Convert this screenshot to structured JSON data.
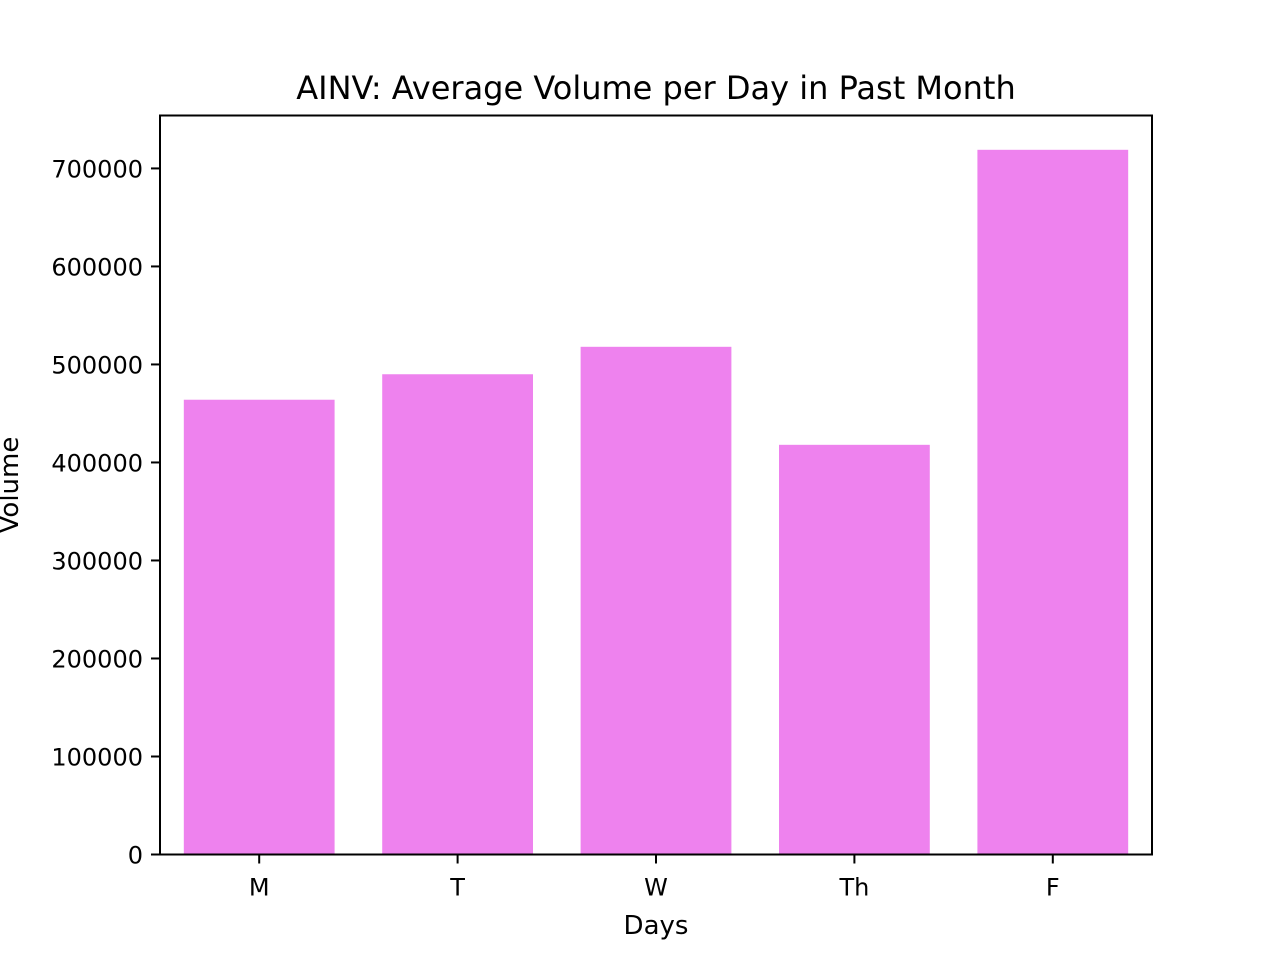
{
  "chart_data": {
    "type": "bar",
    "title": "AINV: Average Volume per Day in Past Month",
    "xlabel": "Days",
    "ylabel": "Volume",
    "categories": [
      "M",
      "T",
      "W",
      "Th",
      "F"
    ],
    "values": [
      464000,
      490000,
      518000,
      418000,
      719000
    ],
    "ylim": [
      0,
      754000
    ],
    "yticks": [
      0,
      100000,
      200000,
      300000,
      400000,
      500000,
      600000,
      700000
    ],
    "ytick_labels": [
      "0",
      "100000",
      "200000",
      "300000",
      "400000",
      "500000",
      "600000",
      "700000"
    ],
    "bar_color": "#EE82EE",
    "grid": false,
    "legend": false
  }
}
